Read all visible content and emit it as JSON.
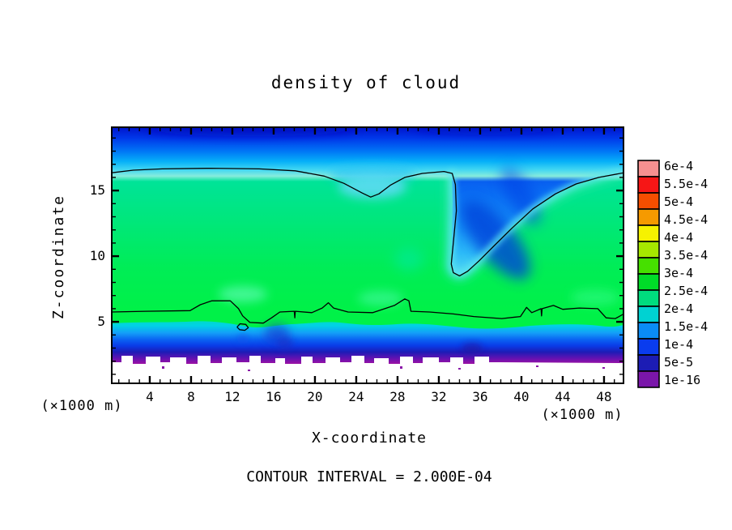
{
  "title": "density of cloud",
  "axes": {
    "x": {
      "label": "X-coordinate",
      "unit": "(×1000 m)",
      "tick_values": [
        4,
        8,
        12,
        16,
        20,
        24,
        28,
        32,
        36,
        40,
        44,
        48
      ],
      "tick_labels": [
        "4",
        "8",
        "12",
        "16",
        "20",
        "24",
        "28",
        "32",
        "36",
        "40",
        "44",
        "48"
      ],
      "minor_tick_step": 1,
      "range": [
        0.3,
        49.9
      ]
    },
    "z": {
      "label": "Z-coordinate",
      "tick_values": [
        5,
        10,
        15
      ],
      "tick_labels": [
        "5",
        "10",
        "15"
      ],
      "minor_tick_step": 1,
      "range": [
        0.3,
        19.8
      ]
    }
  },
  "footer": {
    "contour_note": "CONTOUR INTERVAL = 2.000E-04"
  },
  "colorbar": {
    "colors_top_to_bottom": [
      "#f69090",
      "#f61616",
      "#f64e00",
      "#f69a00",
      "#f6f200",
      "#a6e800",
      "#46e000",
      "#00dc28",
      "#00dc7e",
      "#00d2d2",
      "#0a8cf6",
      "#0a3cee",
      "#1c1cb4",
      "#7a16aa"
    ],
    "labels_top_to_bottom": [
      "6e-4",
      "5.5e-4",
      "5e-4",
      "4.5e-4",
      "4e-4",
      "3.5e-4",
      "3e-4",
      "2.5e-4",
      "2e-4",
      "1.5e-4",
      "1e-4",
      "5e-5",
      "1e-16"
    ]
  },
  "chart_data": {
    "type": "filled-contour",
    "title": "density of cloud",
    "xlabel": "X-coordinate (×1000 m)",
    "ylabel": "Z-coordinate (×1000 m)",
    "xlim": [
      0.3,
      49.9
    ],
    "ylim": [
      0.3,
      19.8
    ],
    "xticks": [
      4,
      8,
      12,
      16,
      20,
      24,
      28,
      32,
      36,
      40,
      44,
      48
    ],
    "zticks": [
      5,
      10,
      15
    ],
    "contour_interval": 0.0002,
    "levels": [
      1e-16,
      5e-05,
      0.0001,
      0.00015,
      0.0002,
      0.00025,
      0.0003,
      0.00035,
      0.0004,
      0.00045,
      0.0005,
      0.00055,
      0.0006
    ],
    "level_colors_low_to_high": [
      "#7a16aa",
      "#1c1cb4",
      "#0a3cee",
      "#0a8cf6",
      "#00d2d2",
      "#00dc7e",
      "#00dc28",
      "#46e000",
      "#a6e800",
      "#f6f200",
      "#f69a00",
      "#f64e00",
      "#f61616",
      "#f69090"
    ],
    "field_notes": "Cloud density field: near-zero purple/navy layer below z=3, maximum green band (2e-4 to 3e-4) between z=6 and z=15, decreasing blue values aloft; dry blue intrusion descends to z=8.5 near x=34; white (no data) below z=2.2",
    "contour_lines": [
      {
        "level": 0.0002,
        "name": "upper",
        "points": [
          [
            0.3,
            16.35
          ],
          [
            2.4,
            16.55
          ],
          [
            5.2,
            16.65
          ],
          [
            9.9,
            16.7
          ],
          [
            14.6,
            16.65
          ],
          [
            18.1,
            16.5
          ],
          [
            20.9,
            16.1
          ],
          [
            22.8,
            15.55
          ],
          [
            24.6,
            14.8
          ],
          [
            25.4,
            14.5
          ],
          [
            26.2,
            14.75
          ],
          [
            27.3,
            15.4
          ],
          [
            28.7,
            16.0
          ],
          [
            30.4,
            16.3
          ],
          [
            32.5,
            16.45
          ],
          [
            33.3,
            16.3
          ],
          [
            33.6,
            15.45
          ],
          [
            33.7,
            13.45
          ],
          [
            33.4,
            11.0
          ],
          [
            33.2,
            9.4
          ],
          [
            33.4,
            8.75
          ],
          [
            34.0,
            8.5
          ],
          [
            34.8,
            8.85
          ],
          [
            35.9,
            9.65
          ],
          [
            37.3,
            10.75
          ],
          [
            39.1,
            12.15
          ],
          [
            41.1,
            13.6
          ],
          [
            43.3,
            14.75
          ],
          [
            45.3,
            15.5
          ],
          [
            47.5,
            16.0
          ],
          [
            49.9,
            16.35
          ]
        ]
      },
      {
        "level": 0.0002,
        "name": "lower",
        "points": [
          [
            0.3,
            5.75
          ],
          [
            3.6,
            5.8
          ],
          [
            7.9,
            5.85
          ],
          [
            8.9,
            6.3
          ],
          [
            10.0,
            6.6
          ],
          [
            11.8,
            6.6
          ],
          [
            12.6,
            6.0
          ],
          [
            13.0,
            5.45
          ],
          [
            13.7,
            4.95
          ],
          [
            15.0,
            4.9
          ],
          [
            15.8,
            5.3
          ],
          [
            16.6,
            5.75
          ],
          [
            18.0,
            5.8
          ],
          [
            18.05,
            5.3
          ],
          [
            18.1,
            5.8
          ],
          [
            19.7,
            5.7
          ],
          [
            20.7,
            6.05
          ],
          [
            21.3,
            6.45
          ],
          [
            21.8,
            6.05
          ],
          [
            23.2,
            5.75
          ],
          [
            25.6,
            5.7
          ],
          [
            27.7,
            6.25
          ],
          [
            28.7,
            6.75
          ],
          [
            29.1,
            6.6
          ],
          [
            29.3,
            5.8
          ],
          [
            31.1,
            5.75
          ],
          [
            33.4,
            5.6
          ],
          [
            35.4,
            5.4
          ],
          [
            38.1,
            5.25
          ],
          [
            39.9,
            5.4
          ],
          [
            40.5,
            6.1
          ],
          [
            41.0,
            5.7
          ],
          [
            41.9,
            6.0
          ],
          [
            41.95,
            5.45
          ],
          [
            42.0,
            6.0
          ],
          [
            43.1,
            6.25
          ],
          [
            44.0,
            5.95
          ],
          [
            45.6,
            6.05
          ],
          [
            47.4,
            6.0
          ],
          [
            48.2,
            5.3
          ],
          [
            49.1,
            5.25
          ],
          [
            49.9,
            5.6
          ]
        ]
      },
      {
        "level": 0.0002,
        "name": "closed-loop",
        "points": [
          [
            12.45,
            4.6
          ],
          [
            12.75,
            4.85
          ],
          [
            13.3,
            4.8
          ],
          [
            13.55,
            4.55
          ],
          [
            13.2,
            4.35
          ],
          [
            12.7,
            4.4
          ],
          [
            12.45,
            4.6
          ]
        ]
      }
    ]
  }
}
